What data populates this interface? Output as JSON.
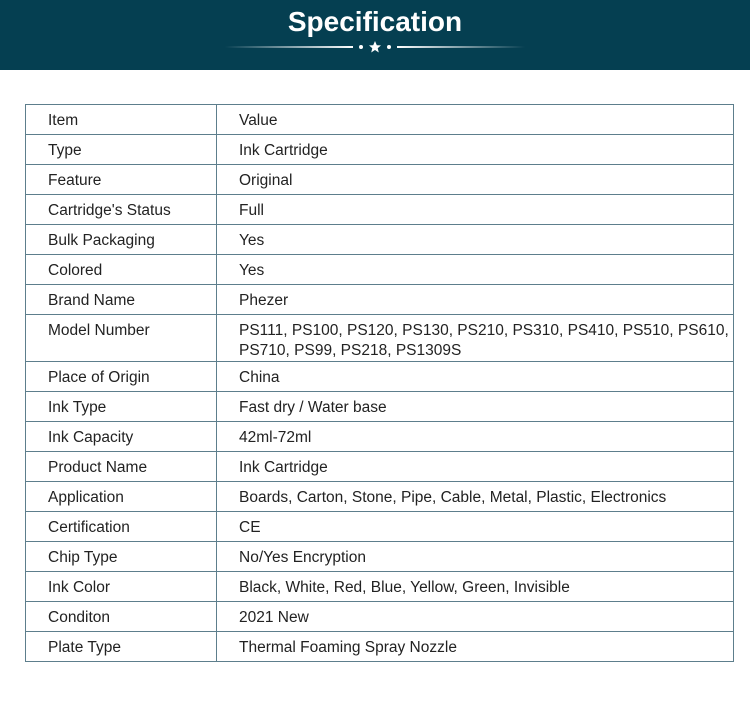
{
  "header": {
    "title": "Specification",
    "decoration_icon": "star-icon"
  },
  "spec": {
    "rows": [
      {
        "label": "Item",
        "value": "Value"
      },
      {
        "label": "Type",
        "value": "Ink Cartridge"
      },
      {
        "label": "Feature",
        "value": "Original"
      },
      {
        "label": "Cartridge's Status",
        "value": "Full"
      },
      {
        "label": "Bulk Packaging",
        "value": "Yes"
      },
      {
        "label": "Colored",
        "value": "Yes"
      },
      {
        "label": "Brand Name",
        "value": "Phezer"
      },
      {
        "label": "Model Number",
        "value": "PS111, PS100, PS120, PS130, PS210, PS310, PS410, PS510, PS610, PS710, PS99, PS218, PS1309S"
      },
      {
        "label": "Place of Origin",
        "value": "China"
      },
      {
        "label": "Ink Type",
        "value": "Fast dry / Water base"
      },
      {
        "label": "Ink Capacity",
        "value": "42ml-72ml"
      },
      {
        "label": "Product Name",
        "value": "Ink Cartridge"
      },
      {
        "label": "Application",
        "value": "Boards, Carton, Stone, Pipe, Cable, Metal, Plastic, Electronics"
      },
      {
        "label": "Certification",
        "value": "CE"
      },
      {
        "label": "Chip Type",
        "value": "No/Yes Encryption"
      },
      {
        "label": "Ink Color",
        "value": "Black, White, Red, Blue, Yellow, Green, Invisible"
      },
      {
        "label": "Conditon",
        "value": "2021 New"
      },
      {
        "label": "Plate Type",
        "value": "Thermal Foaming Spray Nozzle"
      }
    ]
  }
}
